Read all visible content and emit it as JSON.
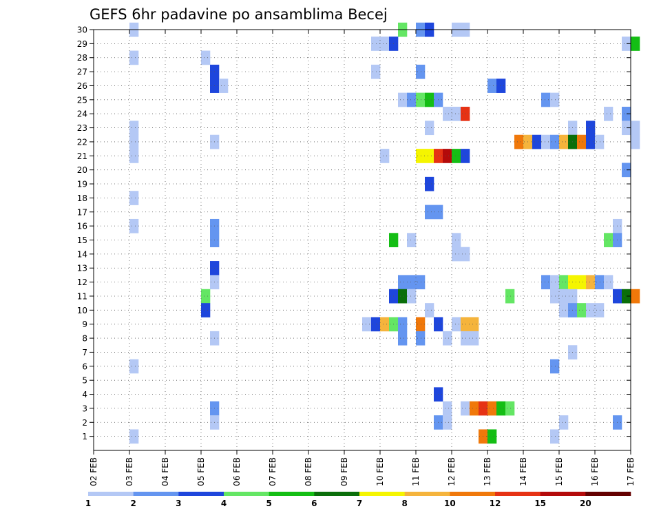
{
  "chart_data": {
    "type": "heatmap",
    "title": "GEFS 6hr padavine po ansamblima Becej",
    "xlabel": "",
    "ylabel": "",
    "x_tick_labels": [
      "02 FEB",
      "03 FEB",
      "04 FEB",
      "05 FEB",
      "06 FEB",
      "07 FEB",
      "08 FEB",
      "09 FEB",
      "10 FEB",
      "11 FEB",
      "12 FEB",
      "13 FEB",
      "14 FEB",
      "15 FEB",
      "16 FEB",
      "17 FEB"
    ],
    "x_range_days": [
      0,
      15
    ],
    "y_tick_labels": [
      "1",
      "2",
      "3",
      "4",
      "5",
      "6",
      "7",
      "8",
      "9",
      "10",
      "11",
      "12",
      "13",
      "14",
      "15",
      "16",
      "17",
      "18",
      "19",
      "20",
      "21",
      "22",
      "23",
      "24",
      "25",
      "26",
      "27",
      "28",
      "29",
      "30"
    ],
    "y_range": [
      0,
      30
    ],
    "grid": true,
    "colorbar": {
      "labels": [
        "1",
        "2",
        "3",
        "4",
        "5",
        "6",
        "7",
        "8",
        "10",
        "12",
        "15",
        "20"
      ],
      "colors": [
        "#b4c8f5",
        "#6495f0",
        "#1e46dc",
        "#64e664",
        "#14be14",
        "#0a6e0a",
        "#f5f500",
        "#f5b43c",
        "#f0780a",
        "#e63214",
        "#b40a0a",
        "#640000"
      ]
    },
    "cells": [
      {
        "m": 30,
        "x": 1.0,
        "c": 1
      },
      {
        "m": 30,
        "x": 8.5,
        "c": 4
      },
      {
        "m": 30,
        "x": 9.0,
        "c": 2
      },
      {
        "m": 30,
        "x": 9.25,
        "c": 3
      },
      {
        "m": 30,
        "x": 10.0,
        "c": 1
      },
      {
        "m": 30,
        "x": 10.25,
        "c": 1
      },
      {
        "m": 29,
        "x": 7.75,
        "c": 1
      },
      {
        "m": 29,
        "x": 8.0,
        "c": 1
      },
      {
        "m": 29,
        "x": 8.25,
        "c": 3
      },
      {
        "m": 29,
        "x": 14.75,
        "c": 1
      },
      {
        "m": 29,
        "x": 15.0,
        "c": 5
      },
      {
        "m": 28,
        "x": 1.0,
        "c": 1
      },
      {
        "m": 28,
        "x": 3.0,
        "c": 1
      },
      {
        "m": 27,
        "x": 3.25,
        "c": 3
      },
      {
        "m": 27,
        "x": 7.75,
        "c": 1
      },
      {
        "m": 27,
        "x": 9.0,
        "c": 2
      },
      {
        "m": 26,
        "x": 3.25,
        "c": 3
      },
      {
        "m": 26,
        "x": 3.5,
        "c": 1
      },
      {
        "m": 26,
        "x": 11.0,
        "c": 2
      },
      {
        "m": 26,
        "x": 11.25,
        "c": 3
      },
      {
        "m": 25,
        "x": 8.5,
        "c": 1
      },
      {
        "m": 25,
        "x": 8.75,
        "c": 2
      },
      {
        "m": 25,
        "x": 9.0,
        "c": 4
      },
      {
        "m": 25,
        "x": 9.25,
        "c": 5
      },
      {
        "m": 25,
        "x": 9.5,
        "c": 2
      },
      {
        "m": 25,
        "x": 12.5,
        "c": 2
      },
      {
        "m": 25,
        "x": 12.75,
        "c": 1
      },
      {
        "m": 24,
        "x": 9.75,
        "c": 1
      },
      {
        "m": 24,
        "x": 10.0,
        "c": 1
      },
      {
        "m": 24,
        "x": 10.25,
        "c": 10
      },
      {
        "m": 24,
        "x": 14.25,
        "c": 1
      },
      {
        "m": 24,
        "x": 14.75,
        "c": 2
      },
      {
        "m": 23,
        "x": 1.0,
        "c": 1
      },
      {
        "m": 23,
        "x": 9.25,
        "c": 1
      },
      {
        "m": 23,
        "x": 13.25,
        "c": 1
      },
      {
        "m": 23,
        "x": 13.75,
        "c": 3
      },
      {
        "m": 23,
        "x": 14.75,
        "c": 1
      },
      {
        "m": 23,
        "x": 15.0,
        "c": 1
      },
      {
        "m": 22,
        "x": 1.0,
        "c": 1
      },
      {
        "m": 22,
        "x": 3.25,
        "c": 1
      },
      {
        "m": 22,
        "x": 11.75,
        "c": 9
      },
      {
        "m": 22,
        "x": 12.0,
        "c": 8
      },
      {
        "m": 22,
        "x": 12.25,
        "c": 3
      },
      {
        "m": 22,
        "x": 12.5,
        "c": 1
      },
      {
        "m": 22,
        "x": 12.75,
        "c": 2
      },
      {
        "m": 22,
        "x": 13.0,
        "c": 8
      },
      {
        "m": 22,
        "x": 13.25,
        "c": 6
      },
      {
        "m": 22,
        "x": 13.5,
        "c": 9
      },
      {
        "m": 22,
        "x": 13.75,
        "c": 3
      },
      {
        "m": 22,
        "x": 14.0,
        "c": 1
      },
      {
        "m": 22,
        "x": 15.0,
        "c": 1
      },
      {
        "m": 21,
        "x": 1.0,
        "c": 1
      },
      {
        "m": 21,
        "x": 8.0,
        "c": 1
      },
      {
        "m": 21,
        "x": 9.0,
        "c": 7
      },
      {
        "m": 21,
        "x": 9.25,
        "c": 7
      },
      {
        "m": 21,
        "x": 9.5,
        "c": 10
      },
      {
        "m": 21,
        "x": 9.75,
        "c": 11
      },
      {
        "m": 21,
        "x": 10.0,
        "c": 5
      },
      {
        "m": 21,
        "x": 10.25,
        "c": 3
      },
      {
        "m": 20,
        "x": 14.75,
        "c": 2
      },
      {
        "m": 19,
        "x": 9.25,
        "c": 3
      },
      {
        "m": 18,
        "x": 1.0,
        "c": 1
      },
      {
        "m": 17,
        "x": 9.25,
        "c": 2
      },
      {
        "m": 17,
        "x": 9.5,
        "c": 2
      },
      {
        "m": 16,
        "x": 1.0,
        "c": 1
      },
      {
        "m": 16,
        "x": 3.25,
        "c": 2
      },
      {
        "m": 16,
        "x": 14.5,
        "c": 1
      },
      {
        "m": 15,
        "x": 3.25,
        "c": 2
      },
      {
        "m": 15,
        "x": 8.25,
        "c": 5
      },
      {
        "m": 15,
        "x": 8.75,
        "c": 1
      },
      {
        "m": 15,
        "x": 10.0,
        "c": 1
      },
      {
        "m": 15,
        "x": 14.25,
        "c": 4
      },
      {
        "m": 15,
        "x": 14.5,
        "c": 2
      },
      {
        "m": 14,
        "x": 10.0,
        "c": 1
      },
      {
        "m": 14,
        "x": 10.25,
        "c": 1
      },
      {
        "m": 13,
        "x": 3.25,
        "c": 3
      },
      {
        "m": 12,
        "x": 3.25,
        "c": 1
      },
      {
        "m": 12,
        "x": 8.5,
        "c": 2
      },
      {
        "m": 12,
        "x": 8.75,
        "c": 2
      },
      {
        "m": 12,
        "x": 9.0,
        "c": 2
      },
      {
        "m": 12,
        "x": 12.5,
        "c": 2
      },
      {
        "m": 12,
        "x": 12.75,
        "c": 1
      },
      {
        "m": 12,
        "x": 13.0,
        "c": 4
      },
      {
        "m": 12,
        "x": 13.25,
        "c": 7
      },
      {
        "m": 12,
        "x": 13.5,
        "c": 7
      },
      {
        "m": 12,
        "x": 13.75,
        "c": 8
      },
      {
        "m": 12,
        "x": 14.0,
        "c": 2
      },
      {
        "m": 12,
        "x": 14.25,
        "c": 1
      },
      {
        "m": 11,
        "x": 3.0,
        "c": 4
      },
      {
        "m": 11,
        "x": 8.25,
        "c": 3
      },
      {
        "m": 11,
        "x": 8.5,
        "c": 6
      },
      {
        "m": 11,
        "x": 8.75,
        "c": 1
      },
      {
        "m": 11,
        "x": 11.5,
        "c": 4
      },
      {
        "m": 11,
        "x": 12.75,
        "c": 1
      },
      {
        "m": 11,
        "x": 13.0,
        "c": 1
      },
      {
        "m": 11,
        "x": 13.25,
        "c": 1
      },
      {
        "m": 11,
        "x": 14.5,
        "c": 3
      },
      {
        "m": 11,
        "x": 14.75,
        "c": 6
      },
      {
        "m": 11,
        "x": 15.0,
        "c": 9
      },
      {
        "m": 10,
        "x": 3.0,
        "c": 3
      },
      {
        "m": 10,
        "x": 9.25,
        "c": 1
      },
      {
        "m": 10,
        "x": 13.0,
        "c": 1
      },
      {
        "m": 10,
        "x": 13.25,
        "c": 2
      },
      {
        "m": 10,
        "x": 13.5,
        "c": 4
      },
      {
        "m": 10,
        "x": 13.75,
        "c": 1
      },
      {
        "m": 10,
        "x": 14.0,
        "c": 1
      },
      {
        "m": 9,
        "x": 7.5,
        "c": 1
      },
      {
        "m": 9,
        "x": 7.75,
        "c": 3
      },
      {
        "m": 9,
        "x": 8.0,
        "c": 8
      },
      {
        "m": 9,
        "x": 8.25,
        "c": 4
      },
      {
        "m": 9,
        "x": 8.5,
        "c": 2
      },
      {
        "m": 9,
        "x": 9.0,
        "c": 9
      },
      {
        "m": 9,
        "x": 9.5,
        "c": 3
      },
      {
        "m": 9,
        "x": 10.0,
        "c": 1
      },
      {
        "m": 9,
        "x": 10.25,
        "c": 8
      },
      {
        "m": 9,
        "x": 10.5,
        "c": 8
      },
      {
        "m": 8,
        "x": 3.25,
        "c": 1
      },
      {
        "m": 8,
        "x": 8.5,
        "c": 2
      },
      {
        "m": 8,
        "x": 9.0,
        "c": 2
      },
      {
        "m": 8,
        "x": 9.75,
        "c": 1
      },
      {
        "m": 8,
        "x": 10.25,
        "c": 1
      },
      {
        "m": 8,
        "x": 10.5,
        "c": 1
      },
      {
        "m": 7,
        "x": 13.25,
        "c": 1
      },
      {
        "m": 6,
        "x": 1.0,
        "c": 1
      },
      {
        "m": 6,
        "x": 12.75,
        "c": 2
      },
      {
        "m": 4,
        "x": 9.5,
        "c": 3
      },
      {
        "m": 3,
        "x": 3.25,
        "c": 2
      },
      {
        "m": 3,
        "x": 9.75,
        "c": 1
      },
      {
        "m": 3,
        "x": 10.25,
        "c": 1
      },
      {
        "m": 3,
        "x": 10.5,
        "c": 9
      },
      {
        "m": 3,
        "x": 10.75,
        "c": 10
      },
      {
        "m": 3,
        "x": 11.0,
        "c": 9
      },
      {
        "m": 3,
        "x": 11.25,
        "c": 5
      },
      {
        "m": 3,
        "x": 11.5,
        "c": 4
      },
      {
        "m": 2,
        "x": 3.25,
        "c": 1
      },
      {
        "m": 2,
        "x": 9.5,
        "c": 2
      },
      {
        "m": 2,
        "x": 9.75,
        "c": 1
      },
      {
        "m": 2,
        "x": 13.0,
        "c": 1
      },
      {
        "m": 2,
        "x": 14.5,
        "c": 2
      },
      {
        "m": 1,
        "x": 1.0,
        "c": 1
      },
      {
        "m": 1,
        "x": 10.75,
        "c": 9
      },
      {
        "m": 1,
        "x": 11.0,
        "c": 5
      },
      {
        "m": 1,
        "x": 12.75,
        "c": 1
      }
    ]
  }
}
